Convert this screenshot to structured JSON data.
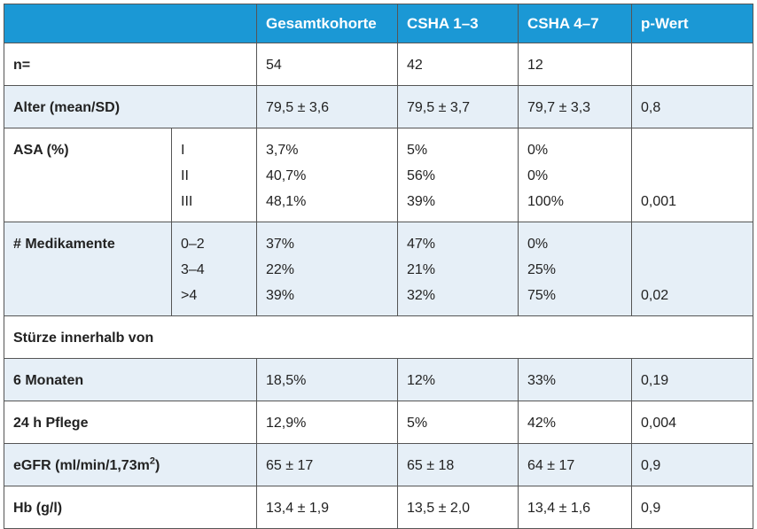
{
  "table": {
    "columns": [
      "Gesamtkohorte",
      "CSHA 1–3",
      "CSHA 4–7",
      "p-Wert"
    ],
    "rows": [
      {
        "label": "n=",
        "values": [
          [
            "54"
          ],
          [
            "42"
          ],
          [
            "12"
          ],
          [
            null
          ]
        ]
      },
      {
        "label": "Alter (mean/SD)",
        "values": [
          [
            "79,5 ± 3,6"
          ],
          [
            "79,5 ± 3,7"
          ],
          [
            "79,7 ± 3,3"
          ],
          [
            "0,8"
          ]
        ]
      },
      {
        "label": "ASA (%)",
        "sub": [
          "I",
          "II",
          "III"
        ],
        "values": [
          [
            "3,7%",
            "40,7%",
            "48,1%"
          ],
          [
            "5%",
            "56%",
            "39%"
          ],
          [
            "0%",
            "0%",
            "100%"
          ],
          [
            null,
            null,
            "0,001"
          ]
        ]
      },
      {
        "label": "# Medikamente",
        "sub": [
          "0–2",
          "3–4",
          ">4"
        ],
        "values": [
          [
            "37%",
            "22%",
            "39%"
          ],
          [
            "47%",
            "21%",
            "32%"
          ],
          [
            "0%",
            "25%",
            "75%"
          ],
          [
            null,
            null,
            "0,02"
          ]
        ]
      },
      {
        "label": "Stürze innerhalb von",
        "section": true
      },
      {
        "label": "6 Monaten",
        "values": [
          [
            "18,5%"
          ],
          [
            "12%"
          ],
          [
            "33%"
          ],
          [
            "0,19"
          ]
        ]
      },
      {
        "label": "24 h Pflege",
        "values": [
          [
            "12,9%"
          ],
          [
            "5%"
          ],
          [
            "42%"
          ],
          [
            "0,004"
          ]
        ]
      },
      {
        "label": "eGFR (ml/min/1,73m",
        "label_sup": "2",
        "label_after": ")",
        "values": [
          [
            "65 ± 17"
          ],
          [
            "65 ± 18"
          ],
          [
            "64 ± 17"
          ],
          [
            "0,9"
          ]
        ]
      },
      {
        "label": "Hb (g/l)",
        "values": [
          [
            "13,4 ± 1,9"
          ],
          [
            "13,5 ± 2,0"
          ],
          [
            "13,4 ± 1,6"
          ],
          [
            "0,9"
          ]
        ]
      }
    ]
  }
}
